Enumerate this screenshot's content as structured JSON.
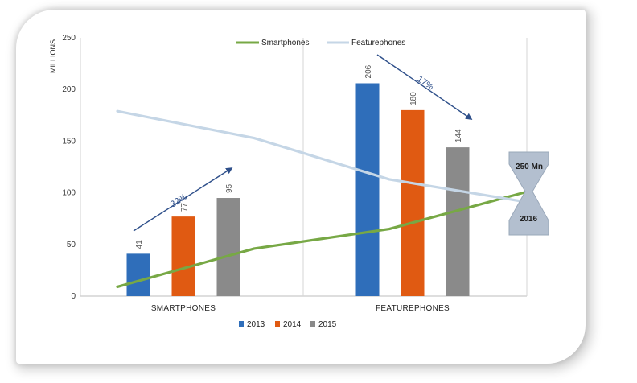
{
  "chart_data": {
    "type": "bar",
    "ylabel": "MILLIONS",
    "ylim": [
      0,
      250
    ],
    "yticks": [
      0,
      50,
      100,
      150,
      200,
      250
    ],
    "categories": [
      "SMARTPHONES",
      "FEATUREPHONES"
    ],
    "series": [
      {
        "name": "2013",
        "color": "#2f6eba",
        "values": [
          41,
          206
        ]
      },
      {
        "name": "2014",
        "color": "#e05a12",
        "values": [
          77,
          180
        ]
      },
      {
        "name": "2015",
        "color": "#8a8a8a",
        "values": [
          95,
          144
        ]
      }
    ],
    "lines": [
      {
        "name": "Smartphones",
        "color": "#77a845",
        "values": [
          9,
          46,
          65,
          101
        ]
      },
      {
        "name": "Featurephones",
        "color": "#c5d6e6",
        "values": [
          179,
          153,
          113,
          91
        ]
      }
    ],
    "annotations": {
      "smartphone_growth": "32%",
      "featurephone_decline": "17%",
      "crossover_value": "250 Mn",
      "crossover_year": "2016"
    },
    "legend_position": "bottom",
    "line_legend_position": "top"
  }
}
